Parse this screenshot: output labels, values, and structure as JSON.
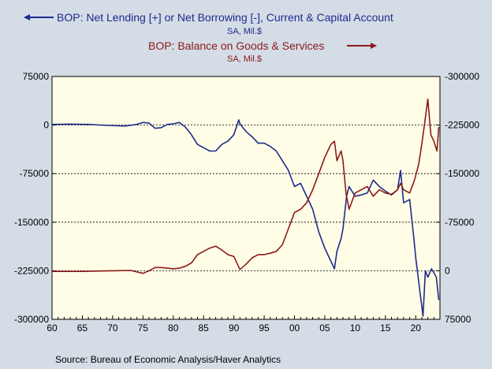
{
  "chart_data": {
    "type": "line",
    "background": "#d4dce6",
    "plot_background": "#fffde6",
    "grid": "horizontal dashed",
    "x_axis": {
      "range": [
        1960,
        2024
      ],
      "tick_labels": [
        "60",
        "65",
        "70",
        "75",
        "80",
        "85",
        "90",
        "95",
        "00",
        "05",
        "10",
        "15",
        "20"
      ],
      "tick_values": [
        1960,
        1965,
        1970,
        1975,
        1980,
        1985,
        1990,
        1995,
        2000,
        2005,
        2010,
        2015,
        2020
      ]
    },
    "left_axis": {
      "range": [
        -300000,
        75000
      ],
      "ticks": [
        75000,
        0,
        -75000,
        -150000,
        -225000,
        -300000
      ],
      "tick_labels": [
        "75000",
        "0",
        "-75000",
        "-150000",
        "-225000",
        "-300000"
      ]
    },
    "right_axis": {
      "inverted": true,
      "range": [
        75000,
        -300000
      ],
      "ticks": [
        -300000,
        -225000,
        -150000,
        -75000,
        0,
        75000
      ],
      "tick_labels": [
        "-300000",
        "-225000",
        "-150000",
        "-75000",
        "0",
        "75000"
      ]
    },
    "series": [
      {
        "name": "BOP: Net Lending [+] or Net Borrowing [-], Current & Capital Account",
        "units": "SA, Mil.$",
        "axis": "left",
        "legend_arrow": "left",
        "color": "#1f2a8c",
        "points": [
          [
            1960,
            1000
          ],
          [
            1963,
            1500
          ],
          [
            1966,
            1000
          ],
          [
            1969,
            -500
          ],
          [
            1972,
            -1500
          ],
          [
            1974,
            1000
          ],
          [
            1975,
            4000
          ],
          [
            1976,
            3000
          ],
          [
            1977,
            -5000
          ],
          [
            1978,
            -4000
          ],
          [
            1979,
            1000
          ],
          [
            1980,
            2000
          ],
          [
            1981,
            4000
          ],
          [
            1982,
            -3000
          ],
          [
            1983,
            -15000
          ],
          [
            1984,
            -30000
          ],
          [
            1985,
            -35000
          ],
          [
            1986,
            -40000
          ],
          [
            1987,
            -40000
          ],
          [
            1988,
            -30000
          ],
          [
            1989,
            -25000
          ],
          [
            1990,
            -15000
          ],
          [
            1990.8,
            8000
          ],
          [
            1991,
            2000
          ],
          [
            1992,
            -10000
          ],
          [
            1993,
            -18000
          ],
          [
            1994,
            -28000
          ],
          [
            1995,
            -28000
          ],
          [
            1996,
            -33000
          ],
          [
            1997,
            -40000
          ],
          [
            1998,
            -55000
          ],
          [
            1999,
            -70000
          ],
          [
            2000,
            -95000
          ],
          [
            2001,
            -90000
          ],
          [
            2002,
            -110000
          ],
          [
            2003,
            -130000
          ],
          [
            2004,
            -165000
          ],
          [
            2005,
            -190000
          ],
          [
            2006,
            -210000
          ],
          [
            2006.6,
            -222000
          ],
          [
            2007,
            -195000
          ],
          [
            2007.7,
            -175000
          ],
          [
            2008,
            -160000
          ],
          [
            2008.6,
            -110000
          ],
          [
            2009,
            -95000
          ],
          [
            2010,
            -110000
          ],
          [
            2011,
            -108000
          ],
          [
            2012,
            -105000
          ],
          [
            2013,
            -85000
          ],
          [
            2014,
            -95000
          ],
          [
            2015,
            -102000
          ],
          [
            2016,
            -108000
          ],
          [
            2017,
            -100000
          ],
          [
            2017.5,
            -70000
          ],
          [
            2018,
            -120000
          ],
          [
            2019,
            -115000
          ],
          [
            2019.7,
            -175000
          ],
          [
            2020,
            -205000
          ],
          [
            2020.8,
            -265000
          ],
          [
            2021.2,
            -295000
          ],
          [
            2021.6,
            -225000
          ],
          [
            2022,
            -235000
          ],
          [
            2022.6,
            -222000
          ],
          [
            2023,
            -228000
          ],
          [
            2023.4,
            -235000
          ],
          [
            2023.8,
            -270000
          ]
        ]
      },
      {
        "name": "BOP: Balance on Goods & Services",
        "units": "SA, Mil.$",
        "axis": "right",
        "legend_arrow": "right",
        "color": "#8b1a1a",
        "points": [
          [
            1960,
            1000
          ],
          [
            1965,
            1000
          ],
          [
            1970,
            0
          ],
          [
            1973,
            -500
          ],
          [
            1975,
            4000
          ],
          [
            1976,
            0
          ],
          [
            1977,
            -5000
          ],
          [
            1978,
            -5000
          ],
          [
            1979,
            -4000
          ],
          [
            1980,
            -3000
          ],
          [
            1981,
            -4000
          ],
          [
            1982,
            -7000
          ],
          [
            1983,
            -12000
          ],
          [
            1984,
            -25000
          ],
          [
            1985,
            -30000
          ],
          [
            1986,
            -35000
          ],
          [
            1987,
            -38000
          ],
          [
            1988,
            -32000
          ],
          [
            1989,
            -25000
          ],
          [
            1990,
            -22000
          ],
          [
            1991,
            -2000
          ],
          [
            1992,
            -10000
          ],
          [
            1993,
            -20000
          ],
          [
            1994,
            -25000
          ],
          [
            1995,
            -25000
          ],
          [
            1996,
            -27000
          ],
          [
            1997,
            -30000
          ],
          [
            1998,
            -40000
          ],
          [
            1999,
            -65000
          ],
          [
            2000,
            -90000
          ],
          [
            2001,
            -95000
          ],
          [
            2002,
            -105000
          ],
          [
            2003,
            -125000
          ],
          [
            2004,
            -150000
          ],
          [
            2005,
            -175000
          ],
          [
            2006,
            -195000
          ],
          [
            2006.6,
            -200000
          ],
          [
            2007,
            -170000
          ],
          [
            2007.7,
            -185000
          ],
          [
            2008,
            -170000
          ],
          [
            2008.5,
            -120000
          ],
          [
            2009,
            -95000
          ],
          [
            2010,
            -120000
          ],
          [
            2011,
            -125000
          ],
          [
            2012,
            -130000
          ],
          [
            2013,
            -115000
          ],
          [
            2014,
            -125000
          ],
          [
            2015,
            -120000
          ],
          [
            2016,
            -118000
          ],
          [
            2017,
            -125000
          ],
          [
            2017.5,
            -135000
          ],
          [
            2018,
            -125000
          ],
          [
            2019,
            -120000
          ],
          [
            2019.8,
            -140000
          ],
          [
            2020.5,
            -165000
          ],
          [
            2021,
            -195000
          ],
          [
            2021.5,
            -230000
          ],
          [
            2022,
            -265000
          ],
          [
            2022.5,
            -210000
          ],
          [
            2023,
            -200000
          ],
          [
            2023.5,
            -185000
          ],
          [
            2023.8,
            -222000
          ]
        ]
      }
    ],
    "source": "Source:  Bureau of Economic Analysis/Haver Analytics"
  },
  "legend": {
    "line1_title": "BOP: Net Lending [+] or Net Borrowing [-], Current & Capital Account",
    "line1_units": "SA, Mil.$",
    "line2_title": "BOP: Balance on Goods & Services",
    "line2_units": "SA, Mil.$"
  }
}
